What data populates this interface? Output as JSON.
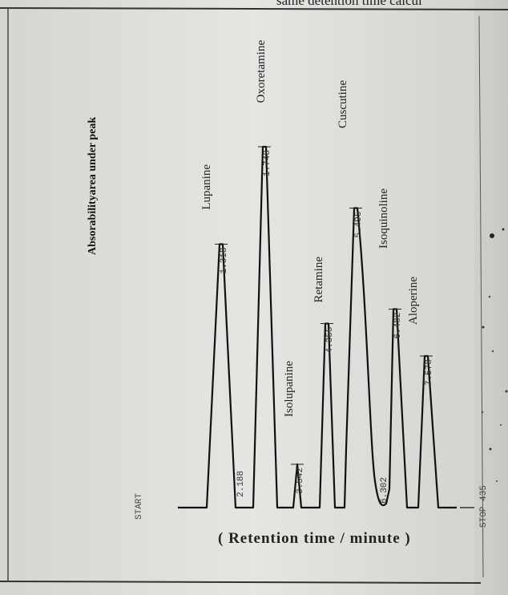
{
  "header_text": "same detention time calcul",
  "start_label": "START",
  "cut_label": "STOP 435",
  "chart_data": {
    "type": "line",
    "title": "",
    "xlabel": "( Retention time / minute )",
    "ylabel": "Absorabilityarea under peak",
    "peaks": [
      {
        "name": "Lupanine",
        "rt_label": "1.318",
        "height": 0.73
      },
      {
        "name": "Oxoretamine",
        "rt_label": "1.748",
        "height": 1.0
      },
      {
        "name": "Isolupanine",
        "rt_label": "3.542",
        "height": 0.12
      },
      {
        "name": "Retamine",
        "rt_label": "4.355",
        "height": 0.51
      },
      {
        "name": "Cuscutine",
        "rt_label": "5.495",
        "height": 0.83
      },
      {
        "name": "Isoquinoline",
        "rt_label": "6.482",
        "height": 0.55
      },
      {
        "name": "Aloperine",
        "rt_label": "7.578",
        "height": 0.42
      }
    ],
    "baseline_labels": [
      {
        "text": "2.188"
      },
      {
        "text": "6.302"
      }
    ],
    "grid": false,
    "legend": "none"
  }
}
